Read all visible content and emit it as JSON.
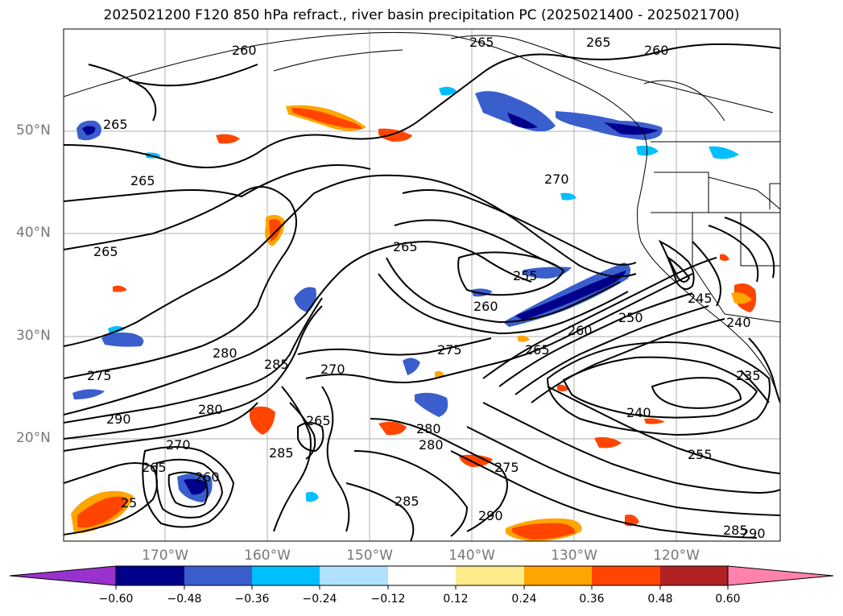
{
  "title": "2025021200 F120 850 hPa refract., river basin precipitation PC (2025021400 - 2025021700)",
  "lat_labels": [
    "50°N",
    "40°N",
    "30°N",
    "20°N"
  ],
  "lon_labels": [
    "170°W",
    "160°W",
    "150°W",
    "140°W",
    "130°W",
    "120°W"
  ],
  "contour_labels": [
    "260",
    "265",
    "265",
    "260",
    "265",
    "265",
    "265",
    "270",
    "265",
    "255",
    "260",
    "280",
    "285",
    "275",
    "250",
    "260",
    "265",
    "245",
    "240",
    "275",
    "270",
    "290",
    "280",
    "270",
    "265",
    "260",
    "285",
    "280",
    "280",
    "275",
    "255",
    "240",
    "235",
    "285",
    "290",
    "290",
    "285",
    "265",
    "25"
  ],
  "colorbar": {
    "ticks": [
      "−0.60",
      "−0.48",
      "−0.36",
      "−0.24",
      "−0.12",
      "0.12",
      "0.24",
      "0.36",
      "0.48",
      "0.60"
    ],
    "colors": [
      "#9932cc",
      "#00008b",
      "#3a5fcd",
      "#00bfff",
      "#b0e2ff",
      "#ffffff",
      "#ffec8b",
      "#ffa500",
      "#ff4500",
      "#b22222",
      "#ff82ab"
    ]
  }
}
